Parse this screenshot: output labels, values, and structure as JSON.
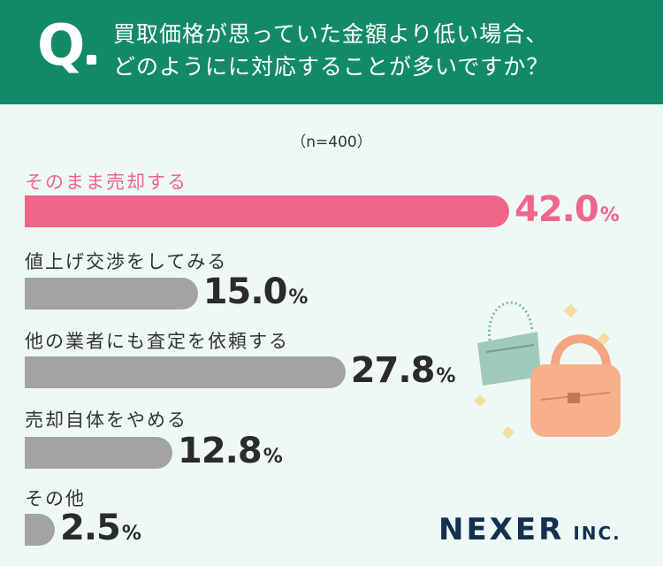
{
  "header": {
    "q_mark": "Q",
    "question_line1": "買取価格が思っていた金額より低い場合、",
    "question_line2": "どのようにに対応することが多いですか？"
  },
  "sample_size": "（n=400）",
  "chart_data": {
    "type": "bar",
    "orientation": "horizontal",
    "categories": [
      "そのまま売却する",
      "値上げ交渉をしてみる",
      "他の業者にも査定を依頼する",
      "売却自体をやめる",
      "その他"
    ],
    "values": [
      42.0,
      15.0,
      27.8,
      12.8,
      2.5
    ],
    "value_labels": [
      "42.0",
      "15.0",
      "27.8",
      "12.8",
      "2.5"
    ],
    "unit": "%",
    "highlight_index": 0,
    "colors": {
      "highlight": "#f0658a",
      "default": "#a3a3a6"
    }
  },
  "logo": {
    "name": "NEXER",
    "suffix": "INC."
  },
  "decoration_icons": [
    "shoulder-bag-icon",
    "handbag-icon",
    "sparkle-icon"
  ]
}
